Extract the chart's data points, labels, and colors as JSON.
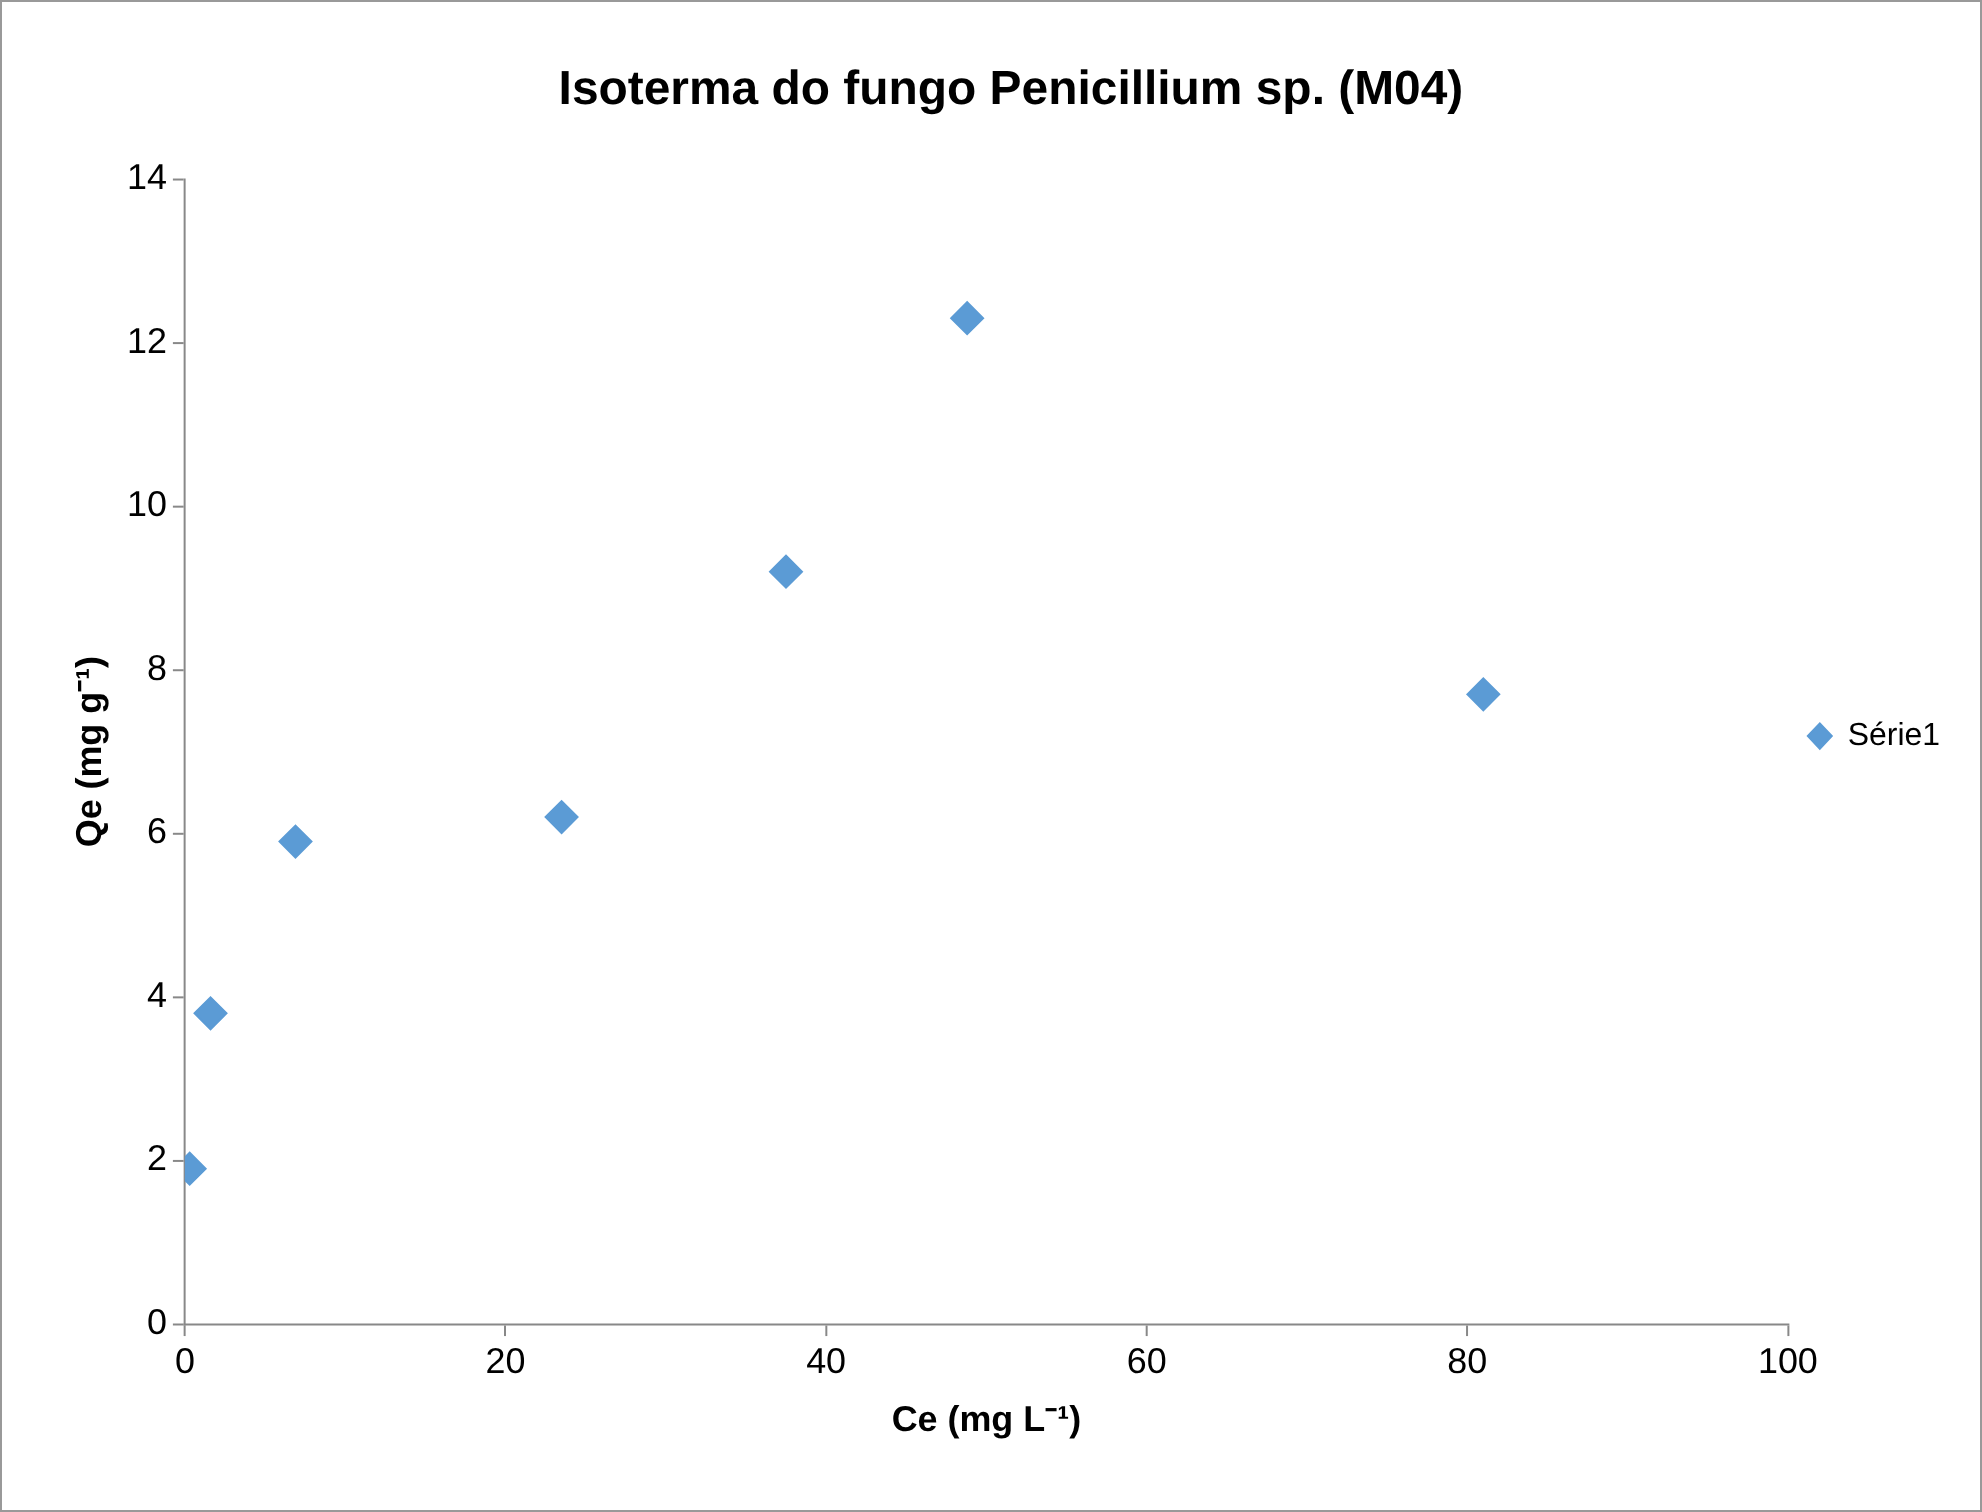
{
  "chart_data": {
    "type": "scatter",
    "title": "Isoterma do fungo Penicillium sp. (M04)",
    "xlabel": "Ce (mg L⁻¹)",
    "ylabel": "Qe (mg g⁻¹)",
    "series": [
      {
        "name": "Série1",
        "color": "#5b9bd5",
        "x": [
          0.3,
          1.6,
          6.9,
          23.5,
          37.5,
          48.8,
          81.0
        ],
        "values": [
          1.9,
          3.8,
          5.9,
          6.2,
          9.2,
          12.3,
          7.7
        ]
      }
    ],
    "xlim": [
      0,
      100
    ],
    "xticks": [
      0,
      20,
      40,
      60,
      80,
      100
    ],
    "ylim": [
      0,
      14
    ],
    "yticks": [
      0,
      2,
      4,
      6,
      8,
      10,
      12,
      14
    ],
    "grid": false,
    "legend": "right",
    "marker": "diamond"
  }
}
